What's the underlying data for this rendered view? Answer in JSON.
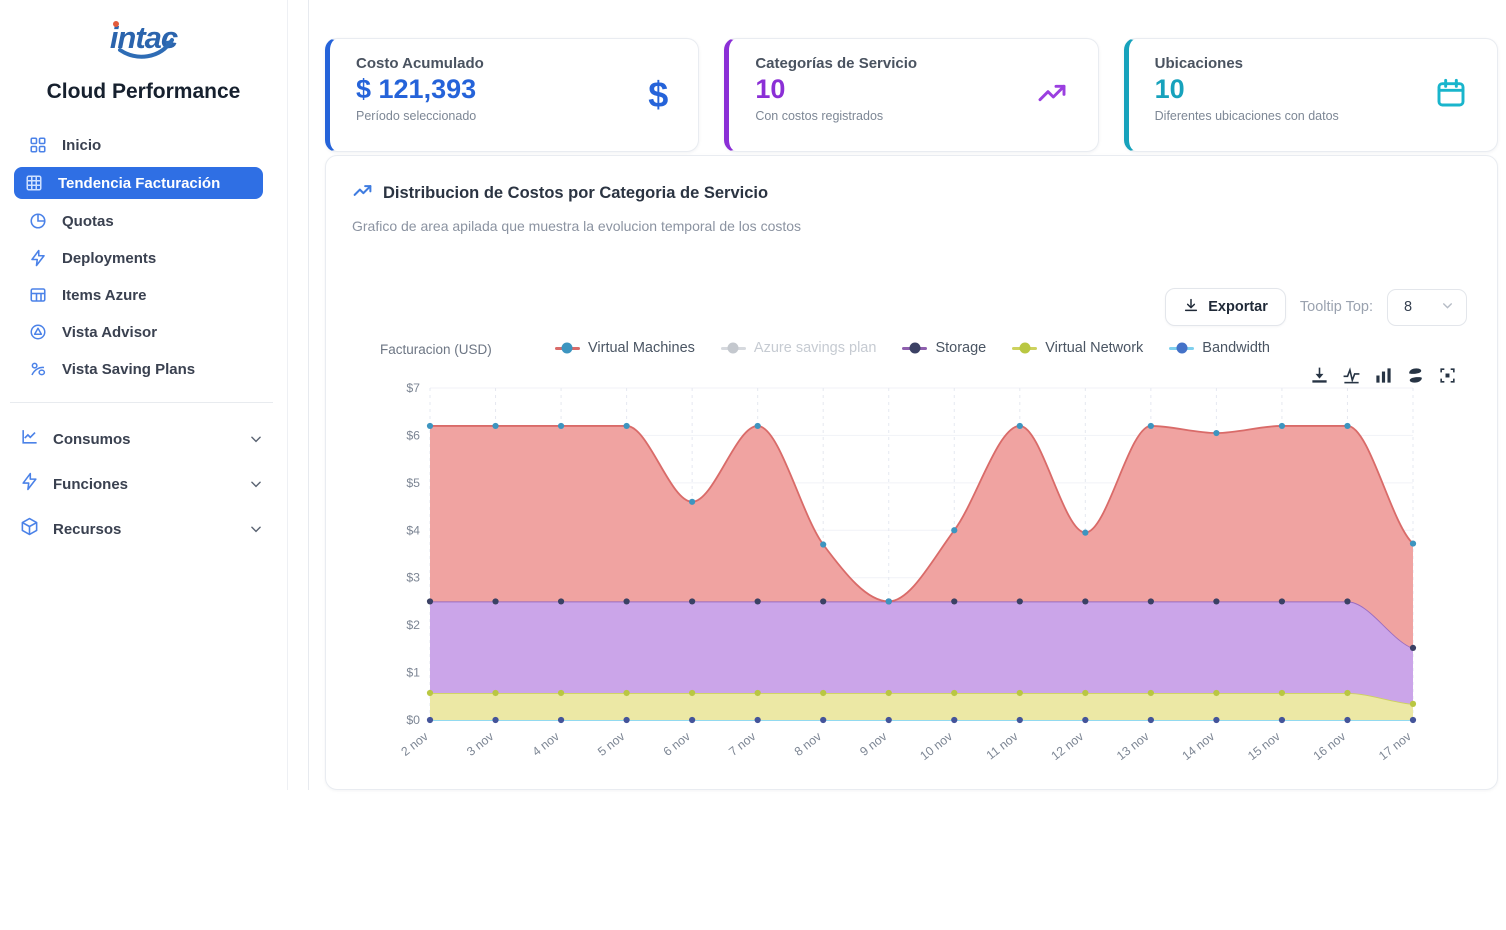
{
  "sidebar": {
    "logo_text": "intac",
    "app_title": "Cloud Performance",
    "items": [
      {
        "label": "Inicio",
        "icon": "dashboard-icon",
        "active": false
      },
      {
        "label": "Tendencia Facturación",
        "icon": "grid-icon",
        "active": true
      },
      {
        "label": "Quotas",
        "icon": "pie-chart-icon",
        "active": false
      },
      {
        "label": "Deployments",
        "icon": "zap-icon",
        "active": false
      },
      {
        "label": "Items Azure",
        "icon": "table-icon",
        "active": false
      },
      {
        "label": "Vista Advisor",
        "icon": "advisor-icon",
        "active": false
      },
      {
        "label": "Vista Saving Plans",
        "icon": "savings-icon",
        "active": false
      }
    ],
    "groups": [
      {
        "label": "Consumos",
        "icon": "line-chart-icon"
      },
      {
        "label": "Funciones",
        "icon": "zap-icon"
      },
      {
        "label": "Recursos",
        "icon": "cube-icon"
      }
    ]
  },
  "cards": [
    {
      "title": "Costo Acumulado",
      "value": "$ 121,393",
      "subtitle": "Período seleccionado",
      "icon": "dollar-icon",
      "accent": "#2563d9"
    },
    {
      "title": "Categorías de Servicio",
      "value": "10",
      "subtitle": "Con costos registrados",
      "icon": "trending-up-icon",
      "accent": "#8b2fd6"
    },
    {
      "title": "Ubicaciones",
      "value": "10",
      "subtitle": "Diferentes ubicaciones con datos",
      "icon": "calendar-icon",
      "accent": "#17a2bc"
    }
  ],
  "chart_card": {
    "title": "Distribucion de Costos por Categoria de Servicio",
    "subtitle": "Grafico de area apilada que muestra la evolucion temporal de los costos",
    "export_label": "Exportar",
    "tooltip_top_label": "Tooltip Top:",
    "tooltip_top_value": "8"
  },
  "chart_data": {
    "type": "area",
    "stacked": true,
    "smooth": true,
    "title": "Distribucion de Costos por Categoria de Servicio",
    "ylabel": "Facturacion (USD)",
    "ylim": [
      0,
      7
    ],
    "y_ticks": [
      "$0",
      "$1",
      "$2",
      "$3",
      "$4",
      "$5",
      "$6",
      "$7"
    ],
    "x": [
      "2 nov",
      "3 nov",
      "4 nov",
      "5 nov",
      "6 nov",
      "7 nov",
      "8 nov",
      "9 nov",
      "10 nov",
      "11 nov",
      "12 nov",
      "13 nov",
      "14 nov",
      "15 nov",
      "16 nov",
      "17 nov"
    ],
    "series": [
      {
        "name": "Bandwidth",
        "values": [
          0,
          0,
          0,
          0,
          0,
          0,
          0,
          0,
          0,
          0,
          0,
          0,
          0,
          0,
          0,
          0
        ],
        "line": "#82d4ee",
        "marker": "#44549a",
        "fill": "none"
      },
      {
        "name": "Virtual Network",
        "values": [
          0.57,
          0.57,
          0.57,
          0.57,
          0.57,
          0.57,
          0.57,
          0.57,
          0.57,
          0.57,
          0.57,
          0.57,
          0.57,
          0.57,
          0.57,
          0.34
        ],
        "line": "#cdd25e",
        "marker": "#b9c742",
        "fill": "#ece8a5"
      },
      {
        "name": "Storage",
        "values": [
          1.93,
          1.93,
          1.93,
          1.93,
          1.93,
          1.93,
          1.93,
          1.93,
          1.93,
          1.93,
          1.93,
          1.93,
          1.93,
          1.93,
          1.93,
          1.18
        ],
        "line": "#9a6cc0",
        "marker": "#3b4164",
        "fill": "#cba5e9"
      },
      {
        "name": "Virtual Machines",
        "values": [
          3.7,
          3.7,
          3.7,
          3.7,
          2.1,
          3.7,
          1.2,
          0,
          1.5,
          3.7,
          1.45,
          3.7,
          3.55,
          3.7,
          3.7,
          2.2
        ],
        "line": "#d96b69",
        "marker": "#3d95c0",
        "fill": "#f0a3a1"
      }
    ],
    "legend": [
      {
        "name": "Virtual Machines",
        "line": "#d96b69",
        "dot": "#3d95c0",
        "enabled": true
      },
      {
        "name": "Azure savings plan",
        "line": "#d6d9de",
        "dot": "#c4c8ce",
        "enabled": false
      },
      {
        "name": "Storage",
        "line": "#8e5fae",
        "dot": "#3b4164",
        "enabled": true
      },
      {
        "name": "Virtual Network",
        "line": "#cdd25e",
        "dot": "#b9c742",
        "enabled": true
      },
      {
        "name": "Bandwidth",
        "line": "#7fd0ee",
        "dot": "#4472c8",
        "enabled": true
      }
    ],
    "legend_position": "top-center",
    "grid": true
  }
}
